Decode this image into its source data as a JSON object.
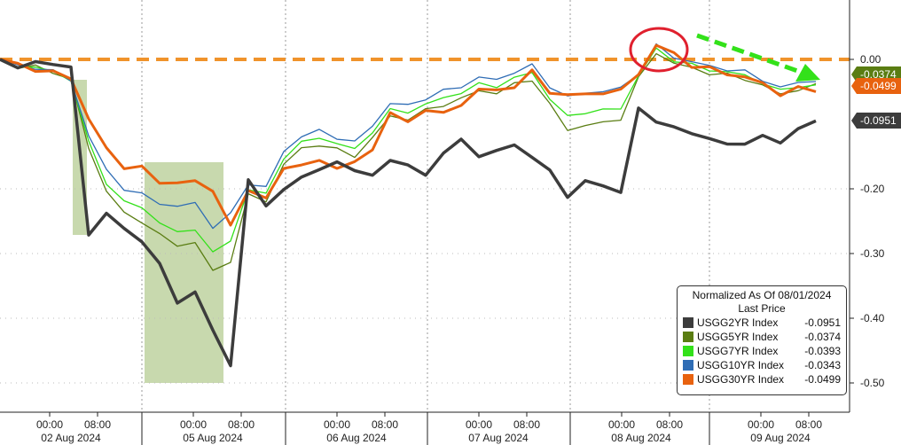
{
  "chart_data": {
    "type": "line",
    "title": "",
    "ylim": [
      -0.52,
      0.08
    ],
    "y_ticks": [
      "0.00",
      "-0.20",
      "-0.30",
      "-0.40",
      "-0.50"
    ],
    "y_tick_values": [
      0,
      -0.2,
      -0.3,
      -0.4,
      -0.5
    ],
    "x_ticks": [
      {
        "time": [
          "00:00",
          "08:00"
        ],
        "date": "02 Aug 2024"
      },
      {
        "time": [
          "00:00",
          "08:00"
        ],
        "date": "05 Aug 2024"
      },
      {
        "time": [
          "00:00",
          "08:00"
        ],
        "date": "06 Aug 2024"
      },
      {
        "time": [
          "00:00",
          "08:00"
        ],
        "date": "07 Aug 2024"
      },
      {
        "time": [
          "00:00",
          "08:00"
        ],
        "date": "08 Aug 2024"
      },
      {
        "time": [
          "00:00",
          "08:00"
        ],
        "date": "09 Aug 2024"
      }
    ],
    "grid": false,
    "reference_line": {
      "value": 0.0,
      "color": "#f0932b",
      "style": "dashed"
    },
    "legend": {
      "placement": "bottom-right",
      "title": "Normalized As Of 08/01/2024",
      "subtitle": "Last Price"
    },
    "series": [
      {
        "name": "USGG2YR Index",
        "last": "-0.0951",
        "color": "#3c3c3c",
        "values": [
          0,
          -0.011,
          -0.007,
          -0.004,
          -0.015,
          -0.27,
          -0.237,
          -0.264,
          -0.278,
          -0.319,
          -0.374,
          -0.36,
          -0.42,
          -0.47,
          -0.19,
          -0.223,
          -0.203,
          -0.182,
          -0.168,
          -0.162,
          -0.168,
          -0.182,
          -0.155,
          -0.162,
          -0.182,
          -0.141,
          -0.127,
          -0.148,
          -0.141,
          -0.134,
          -0.148,
          -0.175,
          -0.21,
          -0.189,
          -0.196,
          -0.203,
          -0.079,
          -0.093,
          -0.107,
          -0.114,
          -0.121,
          -0.134,
          -0.127,
          -0.121,
          -0.127,
          -0.107,
          -0.0951
        ]
      },
      {
        "name": "USGG5YR Index",
        "last": "-0.0374",
        "color": "#5a7d12",
        "values": [
          0,
          -0.01,
          -0.012,
          -0.02,
          -0.03,
          -0.14,
          -0.2,
          -0.24,
          -0.25,
          -0.27,
          -0.29,
          -0.28,
          -0.33,
          -0.31,
          -0.21,
          -0.22,
          -0.16,
          -0.14,
          -0.13,
          -0.14,
          -0.15,
          -0.12,
          -0.09,
          -0.09,
          -0.08,
          -0.07,
          -0.06,
          -0.05,
          -0.05,
          -0.04,
          -0.03,
          -0.07,
          -0.11,
          -0.1,
          -0.1,
          -0.09,
          -0.03,
          0.01,
          -0.005,
          -0.015,
          -0.02,
          -0.025,
          -0.03,
          -0.04,
          -0.055,
          -0.045,
          -0.0374
        ]
      },
      {
        "name": "USGG7YR Index",
        "last": "-0.0393",
        "color": "#33e11a",
        "values": [
          0,
          -0.01,
          -0.012,
          -0.02,
          -0.03,
          -0.13,
          -0.19,
          -0.22,
          -0.23,
          -0.25,
          -0.27,
          -0.26,
          -0.3,
          -0.28,
          -0.2,
          -0.21,
          -0.15,
          -0.13,
          -0.12,
          -0.13,
          -0.14,
          -0.11,
          -0.08,
          -0.08,
          -0.07,
          -0.06,
          -0.05,
          -0.04,
          -0.04,
          -0.03,
          -0.02,
          -0.06,
          -0.09,
          -0.08,
          -0.08,
          -0.075,
          -0.025,
          0.015,
          0.0,
          -0.01,
          -0.015,
          -0.02,
          -0.025,
          -0.035,
          -0.05,
          -0.04,
          -0.0393
        ]
      },
      {
        "name": "USGG10YR Index",
        "last": "-0.0343",
        "color": "#2f6db5",
        "values": [
          0,
          -0.01,
          -0.012,
          -0.02,
          -0.03,
          -0.12,
          -0.17,
          -0.2,
          -0.21,
          -0.22,
          -0.23,
          -0.22,
          -0.26,
          -0.24,
          -0.19,
          -0.2,
          -0.14,
          -0.12,
          -0.11,
          -0.12,
          -0.13,
          -0.1,
          -0.07,
          -0.07,
          -0.06,
          -0.05,
          -0.04,
          -0.03,
          -0.03,
          -0.02,
          -0.01,
          -0.04,
          -0.06,
          -0.05,
          -0.05,
          -0.045,
          -0.02,
          0.02,
          0.005,
          -0.005,
          -0.01,
          -0.015,
          -0.02,
          -0.03,
          -0.045,
          -0.035,
          -0.0343
        ]
      },
      {
        "name": "USGG30YR Index",
        "last": "-0.0499",
        "color": "#e8620f",
        "values": [
          0,
          -0.01,
          -0.015,
          -0.02,
          -0.03,
          -0.09,
          -0.14,
          -0.165,
          -0.168,
          -0.19,
          -0.19,
          -0.19,
          -0.2,
          -0.26,
          -0.2,
          -0.215,
          -0.17,
          -0.16,
          -0.16,
          -0.165,
          -0.16,
          -0.14,
          -0.08,
          -0.1,
          -0.075,
          -0.085,
          -0.07,
          -0.045,
          -0.05,
          -0.04,
          -0.02,
          -0.05,
          -0.055,
          -0.055,
          -0.05,
          -0.05,
          -0.02,
          0.02,
          0.01,
          -0.01,
          -0.015,
          -0.02,
          -0.03,
          -0.035,
          -0.055,
          -0.045,
          -0.0499
        ]
      }
    ],
    "last_value_labels": [
      {
        "text": "-0.0374",
        "color": "#5a7d12"
      },
      {
        "text": "-0.0499",
        "color": "#e8620f"
      },
      {
        "text": "-0.0951",
        "color": "#3c3c3c"
      }
    ],
    "annotations": [
      {
        "type": "shaded-region",
        "color": "#b5cc93"
      },
      {
        "type": "shaded-region",
        "color": "#b5cc93"
      },
      {
        "type": "circle",
        "color": "#e0202e"
      },
      {
        "type": "arrow",
        "color": "#33e11a",
        "style": "dashed"
      }
    ]
  }
}
